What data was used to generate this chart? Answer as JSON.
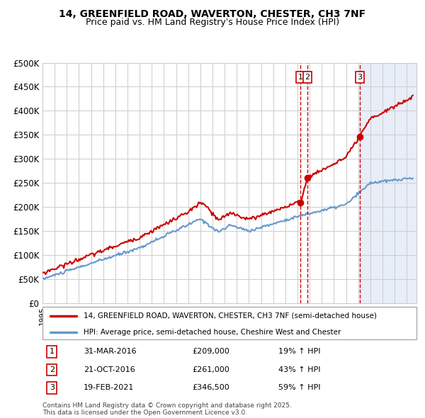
{
  "title1": "14, GREENFIELD ROAD, WAVERTON, CHESTER, CH3 7NF",
  "title2": "Price paid vs. HM Land Registry's House Price Index (HPI)",
  "xlim_start": 1995.0,
  "xlim_end": 2025.8,
  "ylim": [
    0,
    500000
  ],
  "yticks": [
    0,
    50000,
    100000,
    150000,
    200000,
    250000,
    300000,
    350000,
    400000,
    450000,
    500000
  ],
  "ytick_labels": [
    "£0",
    "£50K",
    "£100K",
    "£150K",
    "£200K",
    "£250K",
    "£300K",
    "£350K",
    "£400K",
    "£450K",
    "£500K"
  ],
  "hpi_color": "#6699cc",
  "price_color": "#cc0000",
  "vline_color": "#cc0000",
  "transaction_color": "#cc0000",
  "plot_bg_color": "#ffffff",
  "highlight_bg_color": "#e8eef8",
  "transactions": [
    {
      "id": 1,
      "date_num": 2016.25,
      "price": 209000,
      "date_str": "31-MAR-2016",
      "pct": "19%"
    },
    {
      "id": 2,
      "date_num": 2016.81,
      "price": 261000,
      "date_str": "21-OCT-2016",
      "pct": "43%"
    },
    {
      "id": 3,
      "date_num": 2021.13,
      "price": 346500,
      "date_str": "19-FEB-2021",
      "pct": "59%"
    }
  ],
  "legend_label_price": "14, GREENFIELD ROAD, WAVERTON, CHESTER, CH3 7NF (semi-detached house)",
  "legend_label_hpi": "HPI: Average price, semi-detached house, Cheshire West and Chester",
  "footer": "Contains HM Land Registry data © Crown copyright and database right 2025.\nThis data is licensed under the Open Government Licence v3.0."
}
